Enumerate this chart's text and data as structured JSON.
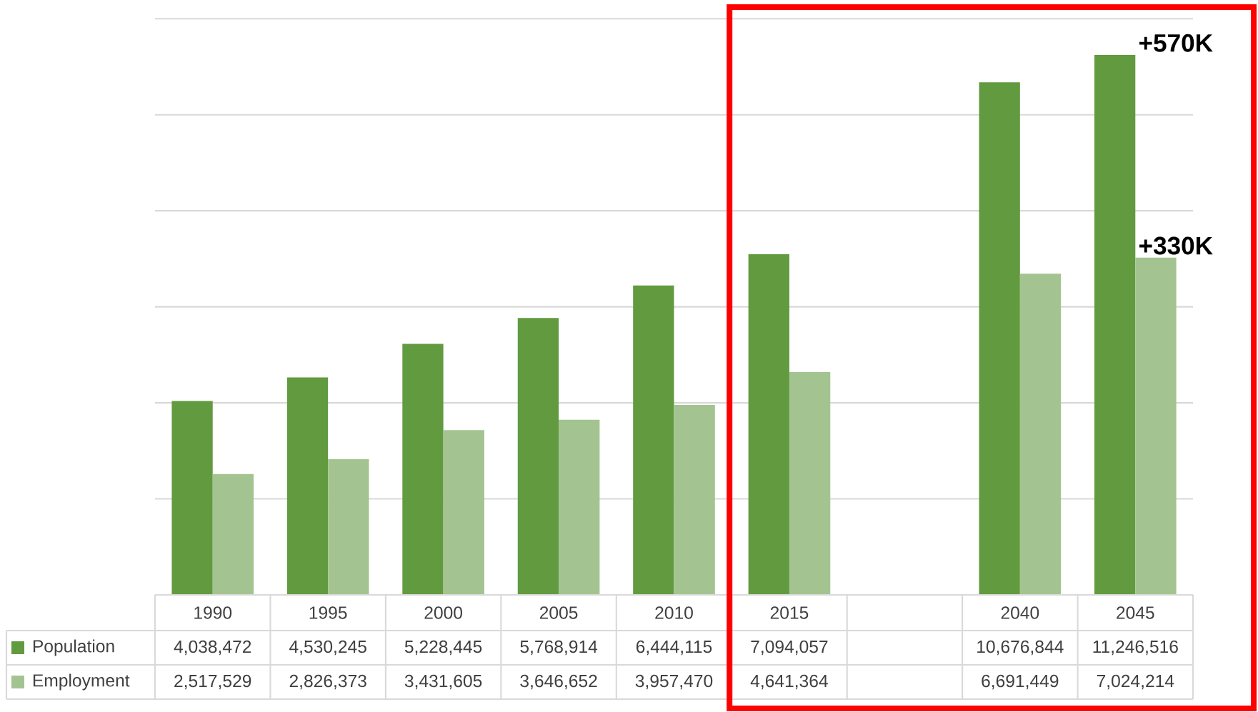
{
  "chart_data": {
    "type": "bar",
    "categories": [
      "1990",
      "1995",
      "2000",
      "2005",
      "2010",
      "2015",
      null,
      "2040",
      "2045"
    ],
    "series": [
      {
        "name": "Population",
        "color": "#629a3f",
        "values": [
          4038472,
          4530245,
          5228445,
          5768914,
          6444115,
          7094057,
          null,
          10676844,
          11246516
        ],
        "value_labels": [
          "4,038,472",
          "4,530,245",
          "5,228,445",
          "5,768,914",
          "6,444,115",
          "7,094,057",
          null,
          "10,676,844",
          "11,246,516"
        ]
      },
      {
        "name": "Employment",
        "color": "#a3c490",
        "values": [
          2517529,
          2826373,
          3431605,
          3646652,
          3957470,
          4641364,
          null,
          6691449,
          7024214
        ],
        "value_labels": [
          "2,517,529",
          "2,826,373",
          "3,431,605",
          "3,646,652",
          "3,957,470",
          "4,641,364",
          null,
          "6,691,449",
          "7,024,214"
        ]
      }
    ],
    "grid": "y",
    "tick_labels": "x",
    "legend": "bottom left",
    "annotations": [
      {
        "text": "+570K",
        "x": "2045",
        "y": 11246516
      },
      {
        "text": "+330K",
        "x": "2045",
        "y": 7024214
      }
    ]
  }
}
